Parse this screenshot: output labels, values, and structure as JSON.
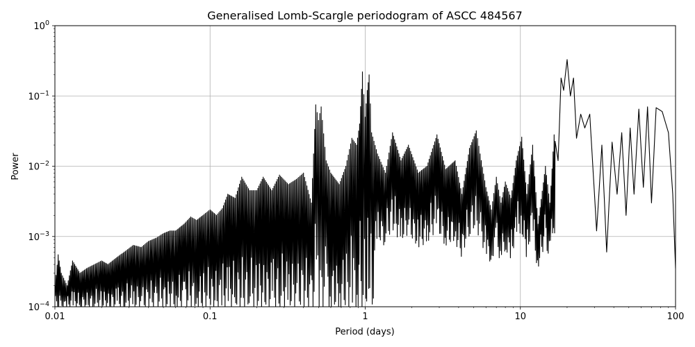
{
  "chart_data": {
    "type": "line",
    "title": "Generalised Lomb-Scargle periodogram of ASCC 484567",
    "xlabel": "Period (days)",
    "ylabel": "Power",
    "x_scale": "log",
    "y_scale": "log",
    "xlim": [
      0.01,
      100
    ],
    "ylim": [
      0.0001,
      1
    ],
    "grid": true,
    "line_color": "#000000",
    "grid_color": "#b0b0b0",
    "x_ticks": [
      {
        "value": 0.01,
        "label": "0.01"
      },
      {
        "value": 0.1,
        "label": "0.1"
      },
      {
        "value": 1,
        "label": "1"
      },
      {
        "value": 10,
        "label": "10"
      },
      {
        "value": 100,
        "label": "100"
      }
    ],
    "y_ticks": [
      {
        "value": 0.0001,
        "base": "10",
        "exp": "−4"
      },
      {
        "value": 0.001,
        "base": "10",
        "exp": "−3"
      },
      {
        "value": 0.01,
        "base": "10",
        "exp": "−2"
      },
      {
        "value": 0.1,
        "base": "10",
        "exp": "−1"
      },
      {
        "value": 1,
        "base": "10",
        "exp": "0"
      }
    ],
    "series": [
      {
        "values_sampled": true,
        "x": [
          0.01,
          0.0105,
          0.011,
          0.012,
          0.013,
          0.0145,
          0.016,
          0.018,
          0.02,
          0.022,
          0.025,
          0.028,
          0.032,
          0.036,
          0.04,
          0.045,
          0.05,
          0.055,
          0.06,
          0.068,
          0.075,
          0.082,
          0.09,
          0.1,
          0.11,
          0.12,
          0.13,
          0.145,
          0.16,
          0.18,
          0.2,
          0.22,
          0.25,
          0.28,
          0.32,
          0.36,
          0.4,
          0.45,
          0.48,
          0.5,
          0.52,
          0.56,
          0.6,
          0.68,
          0.75,
          0.82,
          0.88,
          0.92,
          0.96,
          1.0,
          1.03,
          1.06,
          1.1,
          1.2,
          1.35,
          1.5,
          1.7,
          1.9,
          2.2,
          2.5,
          2.9,
          3.3,
          3.8,
          4.2,
          4.7,
          5.2,
          5.5,
          6.0,
          6.5,
          7.0,
          7.5,
          8.0,
          8.7,
          9.4,
          10.2,
          11.0,
          12.0,
          13.0,
          14.5,
          15.5,
          16.5,
          17.5,
          18.3,
          19.0,
          20.0,
          21.0,
          22.0,
          23.0,
          24.5,
          26.0,
          28.0,
          31.0,
          33.5,
          36.0,
          39.0,
          42.0,
          45.0,
          48.0,
          51.0,
          54.0,
          58.0,
          62.0,
          66.0,
          70.0,
          75.0,
          82.0,
          90.0,
          96.0,
          100.0
        ],
        "y": [
          0.0002,
          0.00055,
          0.0003,
          0.0002,
          0.00045,
          0.0003,
          0.00035,
          0.0004,
          0.00045,
          0.0004,
          0.0005,
          0.0006,
          0.00075,
          0.0007,
          0.00085,
          0.00095,
          0.0011,
          0.0012,
          0.0012,
          0.0015,
          0.0019,
          0.0017,
          0.002,
          0.0024,
          0.002,
          0.0025,
          0.004,
          0.0035,
          0.007,
          0.0045,
          0.0045,
          0.007,
          0.0045,
          0.0075,
          0.0055,
          0.0065,
          0.008,
          0.003,
          0.075,
          0.045,
          0.07,
          0.012,
          0.008,
          0.0055,
          0.01,
          0.025,
          0.02,
          0.04,
          0.22,
          0.05,
          0.12,
          0.2,
          0.03,
          0.015,
          0.008,
          0.03,
          0.012,
          0.02,
          0.008,
          0.01,
          0.028,
          0.009,
          0.012,
          0.004,
          0.018,
          0.032,
          0.015,
          0.005,
          0.0024,
          0.007,
          0.003,
          0.006,
          0.0035,
          0.012,
          0.026,
          0.004,
          0.02,
          0.0015,
          0.01,
          0.003,
          0.028,
          0.012,
          0.18,
          0.12,
          0.33,
          0.1,
          0.18,
          0.025,
          0.055,
          0.035,
          0.055,
          0.0012,
          0.02,
          0.0006,
          0.022,
          0.004,
          0.03,
          0.002,
          0.035,
          0.004,
          0.065,
          0.005,
          0.07,
          0.003,
          0.068,
          0.06,
          0.03,
          0.004,
          0.00035
        ]
      }
    ]
  }
}
